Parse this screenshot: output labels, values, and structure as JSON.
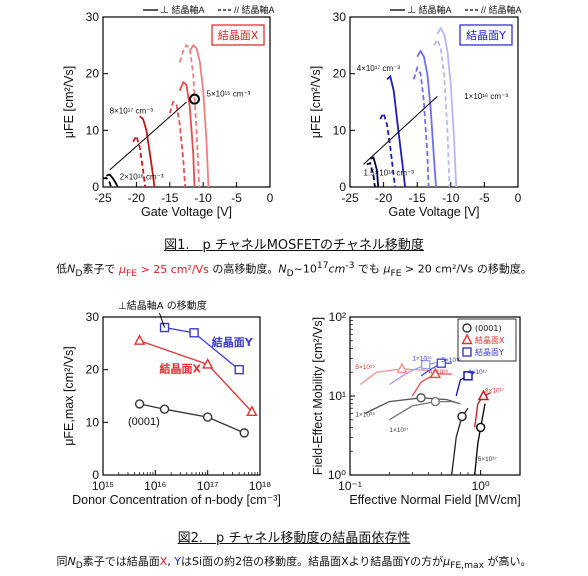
{
  "figure1": {
    "caption": "図1.　p チャネルMOSFETのチャネル移動度",
    "description_parts": [
      "低",
      "N",
      "D",
      "素子で ",
      "μ",
      "FE",
      " > 25 cm²/Vs",
      " の高移動度。",
      "N",
      "D",
      "~10",
      "17",
      "cm",
      "-3",
      " でも ",
      "μ",
      "FE",
      " > 20 cm²/Vs の移動度。"
    ]
  },
  "figure2": {
    "caption": "図2.　p チャネル移動度の結晶面依存性",
    "description_parts": [
      "同",
      "N",
      "D",
      "素子では結晶面",
      "X",
      ", ",
      "Y",
      "はSi面の約2倍の移動度。結晶面Xより結晶面Yの方が",
      "μ",
      "FE,max",
      " が高い。"
    ]
  },
  "chart_data": [
    {
      "type": "line",
      "panel": "結晶面X",
      "xlabel": "Gate Voltage [V]",
      "ylabel": "μFE [cm²/Vs]",
      "xlim": [
        -25,
        0
      ],
      "ylim": [
        0,
        30
      ],
      "xticks": [
        "-25",
        "-20",
        "-15",
        "-10",
        "-5",
        "0"
      ],
      "yticks": [
        "0",
        "10",
        "20",
        "30"
      ],
      "legend": [
        "—  ⊥ 結晶軸A",
        "- - -// 結晶軸A"
      ],
      "annotations": [
        "5×10¹⁵ cm⁻³",
        "8×10¹⁷ cm⁻³",
        "2×10¹⁸ cm⁻³"
      ],
      "series": [
        {
          "style": "solid",
          "color": "#f08080",
          "x": [
            -12,
            -11.5,
            -11,
            -10.5,
            -10,
            -9.5,
            -9.2
          ],
          "y": [
            24,
            25,
            24.5,
            22,
            17,
            8,
            0
          ]
        },
        {
          "style": "dashed",
          "color": "#f08080",
          "x": [
            -13.5,
            -13,
            -12.5,
            -12,
            -11.5,
            -11,
            -10.6
          ],
          "y": [
            22,
            24,
            25,
            24.5,
            20,
            10,
            0
          ]
        },
        {
          "style": "solid",
          "color": "#e05050",
          "x": [
            -13.5,
            -13,
            -12.5,
            -12,
            -11.5,
            -11.3
          ],
          "y": [
            17,
            18.5,
            18,
            14,
            6,
            0
          ]
        },
        {
          "style": "dashed",
          "color": "#e05050",
          "x": [
            -15,
            -14.5,
            -14,
            -13.5,
            -13,
            -12.7
          ],
          "y": [
            13,
            15,
            14.5,
            11,
            5,
            0
          ]
        },
        {
          "style": "solid",
          "color": "#c01818",
          "x": [
            -19.5,
            -19,
            -18.5,
            -18,
            -17.5,
            -17.3
          ],
          "y": [
            12.5,
            12,
            10,
            6,
            2,
            0
          ]
        },
        {
          "style": "dashed",
          "color": "#c01818",
          "x": [
            -20.5,
            -20,
            -19.5,
            -19,
            -18.7
          ],
          "y": [
            8,
            9,
            7,
            3,
            0
          ]
        },
        {
          "style": "solid",
          "color": "#000000",
          "x": [
            -24.5,
            -24,
            -23.5,
            -23,
            -22.8
          ],
          "y": [
            2,
            2.2,
            1.5,
            0.5,
            0
          ]
        },
        {
          "style": "dashed",
          "color": "#000000",
          "x": [
            -25,
            -24.5,
            -24,
            -23.8
          ],
          "y": [
            1.5,
            1.6,
            0.8,
            0
          ]
        }
      ]
    },
    {
      "type": "line",
      "panel": "結晶面Y",
      "xlabel": "Gate Voltage [V]",
      "ylabel": "μFE [cm²/Vs]",
      "xlim": [
        -25,
        0
      ],
      "ylim": [
        0,
        30
      ],
      "xticks": [
        "-25",
        "-20",
        "-15",
        "-10",
        "-5",
        "0"
      ],
      "yticks": [
        "0",
        "10",
        "20",
        "30"
      ],
      "legend": [
        "—  ⊥ 結晶軸A",
        "- - -// 結晶軸A"
      ],
      "annotations": [
        "4×10¹⁷ cm⁻³",
        "1×10¹⁶ cm⁻³",
        "1.5×10¹⁸ cm⁻³"
      ],
      "series": [
        {
          "style": "solid",
          "color": "#b8b8f4",
          "x": [
            -12,
            -11.5,
            -11,
            -10.5,
            -10,
            -9.5,
            -9.2
          ],
          "y": [
            27,
            28,
            27,
            24,
            18,
            8,
            0
          ]
        },
        {
          "style": "dashed",
          "color": "#b8b8f4",
          "x": [
            -12.5,
            -12,
            -11.5,
            -11,
            -10.5,
            -10.2
          ],
          "y": [
            25,
            26,
            24.5,
            20,
            10,
            0
          ]
        },
        {
          "style": "solid",
          "color": "#6e6ef0",
          "x": [
            -15,
            -14.5,
            -14,
            -13.5,
            -13,
            -12.5,
            -12.2
          ],
          "y": [
            23,
            24,
            23,
            20,
            14,
            5,
            0
          ]
        },
        {
          "style": "dashed",
          "color": "#6e6ef0",
          "x": [
            -15.5,
            -15,
            -14.5,
            -14,
            -13.5,
            -13.3
          ],
          "y": [
            19,
            21,
            20,
            15,
            6,
            0
          ]
        },
        {
          "style": "solid",
          "color": "#1c1cb4",
          "x": [
            -19.5,
            -19,
            -18.5,
            -18,
            -17.5,
            -17,
            -16.8
          ],
          "y": [
            19,
            19.5,
            17,
            12,
            7,
            2,
            0
          ]
        },
        {
          "style": "dashed",
          "color": "#1c1cb4",
          "x": [
            -20.5,
            -20,
            -19.5,
            -19,
            -18.5,
            -18.3
          ],
          "y": [
            12,
            13,
            11,
            7,
            2,
            0
          ]
        },
        {
          "style": "solid",
          "color": "#000040",
          "x": [
            -22,
            -21.5,
            -21,
            -20.8
          ],
          "y": [
            5,
            5.2,
            3,
            0
          ]
        },
        {
          "style": "dashed",
          "color": "#000040",
          "x": [
            -22.5,
            -22,
            -21.5,
            -21.3
          ],
          "y": [
            4,
            4.2,
            2,
            0
          ]
        }
      ]
    },
    {
      "type": "line",
      "panel": "移動度 vs ドナー濃度",
      "xlabel": "Donor Concentration of n-body [cm⁻³]",
      "ylabel": "μFE,max [cm²/Vs]",
      "xscale": "log",
      "xlim": [
        1000000000000000.0,
        1e+18
      ],
      "ylim": [
        0,
        30
      ],
      "xticks": [
        "10¹⁵",
        "10¹⁶",
        "10¹⁷",
        "10¹⁸"
      ],
      "yticks": [
        "0",
        "10",
        "20",
        "30"
      ],
      "annotations": [
        "⊥結晶軸A の移動度",
        "結晶面Y",
        "結晶面X",
        "(0001)"
      ],
      "series": [
        {
          "name": "結晶面Y",
          "marker": "square",
          "color": "#3a3ad0",
          "x": [
            1.5e+16,
            5.5e+16,
            4e+17
          ],
          "y": [
            28,
            27,
            20
          ]
        },
        {
          "name": "結晶面X",
          "marker": "triangle",
          "color": "#e03030",
          "x": [
            5000000000000000.0,
            1e+17,
            7e+17
          ],
          "y": [
            25.5,
            21,
            12
          ]
        },
        {
          "name": "(0001)",
          "marker": "circle",
          "color": "#333333",
          "x": [
            5000000000000000.0,
            1.5e+16,
            1e+17,
            5e+17
          ],
          "y": [
            13.5,
            12.5,
            11,
            8
          ]
        }
      ]
    },
    {
      "type": "line",
      "panel": "移動度 vs 実効垂直電界",
      "xlabel": "Effective Normal Field [MV/cm]",
      "ylabel": "Field-Effect Mobility [cm²/Vs]",
      "xscale": "log",
      "yscale": "log",
      "xlim": [
        0.1,
        2
      ],
      "ylim": [
        1,
        100
      ],
      "xticks": [
        "10⁻¹",
        "10⁰"
      ],
      "yticks": [
        "10⁰",
        "10¹",
        "10²"
      ],
      "legend": [
        "(0001)",
        "結晶面X",
        "結晶面Y"
      ],
      "annotations": [
        "5×10¹⁵",
        "1×10¹⁶",
        "5×10¹⁶",
        "4×10¹⁶",
        "4×10¹⁷",
        "8×10¹⁷",
        "1×10¹⁶",
        "1×10¹⁷",
        "5×10¹⁷"
      ],
      "series": [
        {
          "name": "(0001)",
          "marker": "circle",
          "color": "#555555",
          "x": [
            0.13,
            0.2,
            0.35,
            0.55,
            0.7
          ],
          "y": [
            6,
            8.5,
            9.5,
            9,
            8
          ]
        },
        {
          "name": "(0001)",
          "marker": "circle",
          "color": "#777777",
          "x": [
            0.2,
            0.3,
            0.45,
            0.6,
            0.7
          ],
          "y": [
            5,
            7.5,
            8.5,
            8.5,
            8
          ]
        },
        {
          "name": "(0001)",
          "marker": "circle",
          "color": "#222222",
          "x": [
            0.6,
            0.65,
            0.72,
            0.8
          ],
          "y": [
            1,
            3,
            5.5,
            7
          ]
        },
        {
          "name": "(0001)",
          "marker": "circle",
          "color": "#000000",
          "x": [
            0.9,
            0.95,
            1.0,
            1.08
          ],
          "y": [
            1,
            2.5,
            4,
            8
          ]
        },
        {
          "name": "結晶面X",
          "marker": "triangle",
          "color": "#f49090",
          "x": [
            0.12,
            0.16,
            0.25,
            0.4
          ],
          "y": [
            14,
            20,
            22,
            21
          ]
        },
        {
          "name": "結晶面X",
          "marker": "triangle",
          "color": "#e05050",
          "x": [
            0.3,
            0.35,
            0.45,
            0.6
          ],
          "y": [
            10,
            15,
            19,
            19
          ]
        },
        {
          "name": "結晶面X",
          "marker": "triangle",
          "color": "#c01818",
          "x": [
            0.9,
            0.95,
            1.05,
            1.2
          ],
          "y": [
            4,
            8,
            10,
            11
          ]
        },
        {
          "name": "結晶面Y",
          "marker": "square",
          "color": "#9c9cf0",
          "x": [
            0.2,
            0.28,
            0.38,
            0.5
          ],
          "y": [
            14,
            20,
            25,
            27
          ]
        },
        {
          "name": "結晶面Y",
          "marker": "square",
          "color": "#4a4ae0",
          "x": [
            0.35,
            0.42,
            0.5,
            0.6
          ],
          "y": [
            18,
            22,
            26,
            26
          ]
        },
        {
          "name": "結晶面Y",
          "marker": "square",
          "color": "#1010a0",
          "x": [
            0.65,
            0.7,
            0.8,
            0.9
          ],
          "y": [
            10,
            16,
            18,
            20
          ]
        }
      ]
    }
  ]
}
